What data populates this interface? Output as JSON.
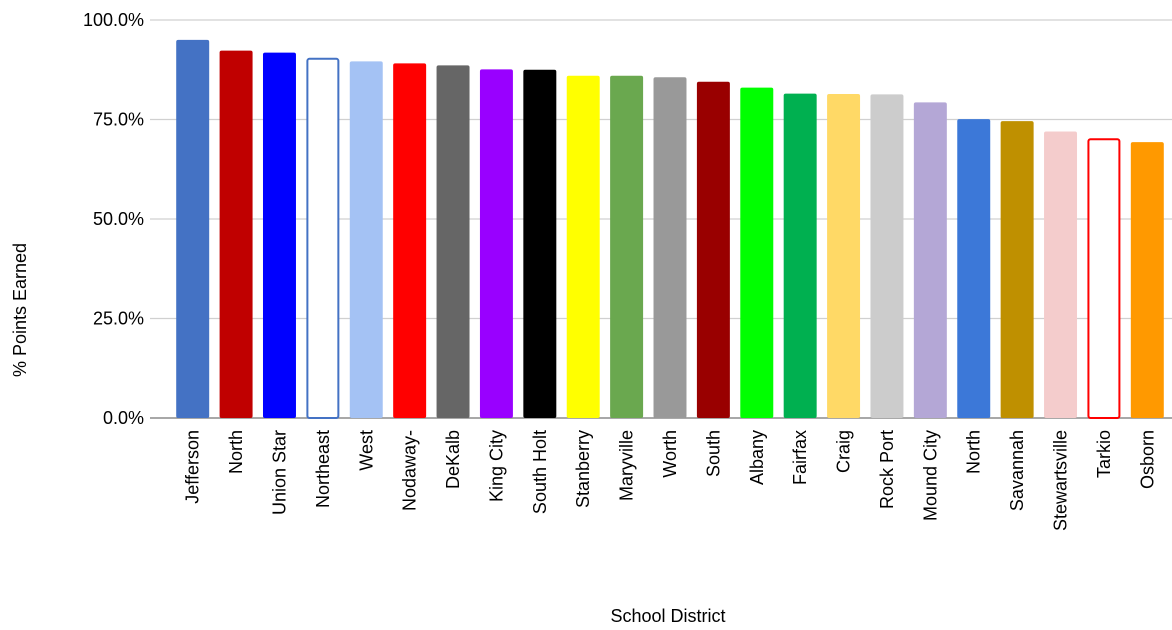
{
  "chart_data": {
    "type": "bar",
    "xlabel": "School District",
    "ylabel": "% Points Earned",
    "ylim": [
      0,
      100
    ],
    "yticks": [
      "0.0%",
      "25.0%",
      "50.0%",
      "75.0%",
      "100.0%"
    ],
    "grid": true,
    "categories": [
      "Jefferson",
      "North",
      "Union Star",
      "Northeast",
      "West",
      "Nodaway-",
      "DeKalb",
      "King City",
      "South Holt",
      "Stanberry",
      "Maryville",
      "Worth",
      "South",
      "Albany",
      "Fairfax",
      "Craig",
      "Rock Port",
      "Mound City",
      "North",
      "Savannah",
      "Stewartsville",
      "Tarkio",
      "Osborn"
    ],
    "values": [
      95.0,
      92.3,
      91.8,
      90.5,
      89.6,
      89.1,
      88.6,
      87.6,
      87.5,
      86.0,
      86.0,
      85.6,
      84.5,
      83.0,
      81.5,
      81.4,
      81.3,
      79.3,
      75.1,
      74.6,
      72.0,
      70.3,
      69.3
    ],
    "colors": [
      "#4472c4",
      "#c00000",
      "#0000ff",
      "#ffffff",
      "#a4c2f4",
      "#ff0000",
      "#666666",
      "#9900ff",
      "#000000",
      "#ffff00",
      "#6aa84f",
      "#999999",
      "#990000",
      "#00ff00",
      "#00b050",
      "#ffd966",
      "#cccccc",
      "#b4a7d6",
      "#3c78d8",
      "#bf9000",
      "#f4cccc",
      "#ffffff",
      "#ff9900"
    ],
    "outline_colors": [
      "",
      "",
      "",
      "#4472c4",
      "",
      "",
      "",
      "",
      "",
      "",
      "",
      "",
      "",
      "",
      "",
      "",
      "",
      "",
      "",
      "",
      "",
      "#ff0000",
      ""
    ]
  }
}
